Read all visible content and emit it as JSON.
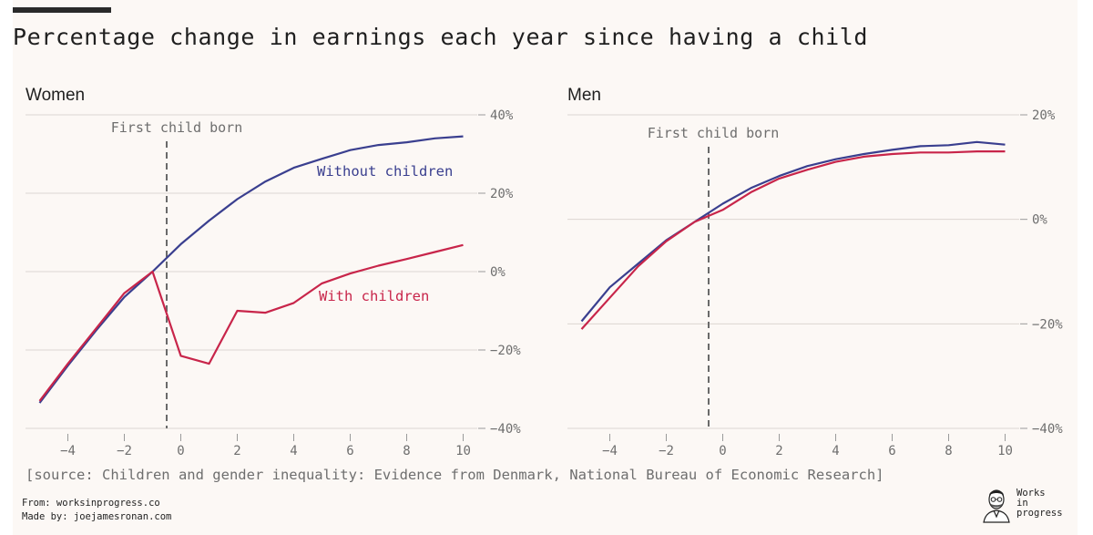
{
  "title": "Percentage change in earnings each year since having a child",
  "source": "[source: Children and gender inequality: Evidence from Denmark, National Bureau of Economic Research]",
  "credits": {
    "from": "From: worksinprogress.co",
    "made_by": "Made by: joejamesronan.com"
  },
  "logo": {
    "line1": "Works",
    "line2": "in",
    "line3": "progress",
    "icon": "person-portrait-icon"
  },
  "colors": {
    "background": "#fcf8f5",
    "without_children": "#3a3f8f",
    "with_children": "#c8254a",
    "grid": "#dcd6d2",
    "axis_text": "#6e6e6e"
  },
  "chart_data": [
    {
      "type": "line",
      "panel_title": "Women",
      "annotation": "First child born",
      "event_x": -0.5,
      "xlim": [
        -5.5,
        10.5
      ],
      "ylim": [
        -40,
        40
      ],
      "x_ticks": [
        -4,
        -2,
        0,
        2,
        4,
        6,
        8,
        10
      ],
      "x_tick_labels": [
        "−4",
        "−2",
        "0",
        "2",
        "4",
        "6",
        "8",
        "10"
      ],
      "y_ticks": [
        40,
        20,
        0,
        -20,
        -40
      ],
      "y_tick_labels": [
        "40%",
        "20%",
        "0%",
        "−20%",
        "−40%"
      ],
      "grid": true,
      "series": [
        {
          "name": "Without children",
          "color": "#3a3f8f",
          "x": [
            -5,
            -4,
            -3,
            -2,
            -1,
            0,
            1,
            2,
            3,
            4,
            5,
            6,
            7,
            8,
            9,
            10
          ],
          "values": [
            -33.5,
            -24,
            -15,
            -6.5,
            0,
            7,
            13,
            18.5,
            23,
            26.5,
            28.8,
            31,
            32.3,
            33,
            34,
            34.5
          ]
        },
        {
          "name": "With children",
          "color": "#c8254a",
          "x": [
            -5,
            -4,
            -3,
            -2,
            -1,
            0,
            1,
            2,
            3,
            4,
            5,
            6,
            7,
            8,
            9,
            10
          ],
          "values": [
            -33,
            -23.5,
            -14.5,
            -5.5,
            0,
            -21.5,
            -23.5,
            -10,
            -10.5,
            -8,
            -3,
            -0.5,
            1.5,
            3.2,
            5,
            6.8
          ]
        }
      ]
    },
    {
      "type": "line",
      "panel_title": "Men",
      "annotation": "First child born",
      "event_x": -0.5,
      "xlim": [
        -5.5,
        10.5
      ],
      "ylim": [
        -40,
        20
      ],
      "x_ticks": [
        -4,
        -2,
        0,
        2,
        4,
        6,
        8,
        10
      ],
      "x_tick_labels": [
        "−4",
        "−2",
        "0",
        "2",
        "4",
        "6",
        "8",
        "10"
      ],
      "y_ticks": [
        20,
        0,
        -20,
        -40
      ],
      "y_tick_labels": [
        "20%",
        "0%",
        "−20%",
        "−40%"
      ],
      "grid": true,
      "series": [
        {
          "name": "",
          "color": "#3a3f8f",
          "x": [
            -5,
            -4,
            -3,
            -2,
            -1,
            0,
            1,
            2,
            3,
            4,
            5,
            6,
            7,
            8,
            9,
            10
          ],
          "values": [
            -19.5,
            -13,
            -8.5,
            -4,
            -0.5,
            3,
            6,
            8.3,
            10.2,
            11.5,
            12.5,
            13.3,
            14,
            14.2,
            14.8,
            14.3
          ]
        },
        {
          "name": "",
          "color": "#c8254a",
          "x": [
            -5,
            -4,
            -3,
            -2,
            -1,
            0,
            1,
            2,
            3,
            4,
            5,
            6,
            7,
            8,
            9,
            10
          ],
          "values": [
            -21,
            -15,
            -9,
            -4.2,
            -0.5,
            1.8,
            5.2,
            7.8,
            9.5,
            11,
            12,
            12.5,
            12.8,
            12.8,
            13,
            13
          ]
        }
      ]
    }
  ]
}
